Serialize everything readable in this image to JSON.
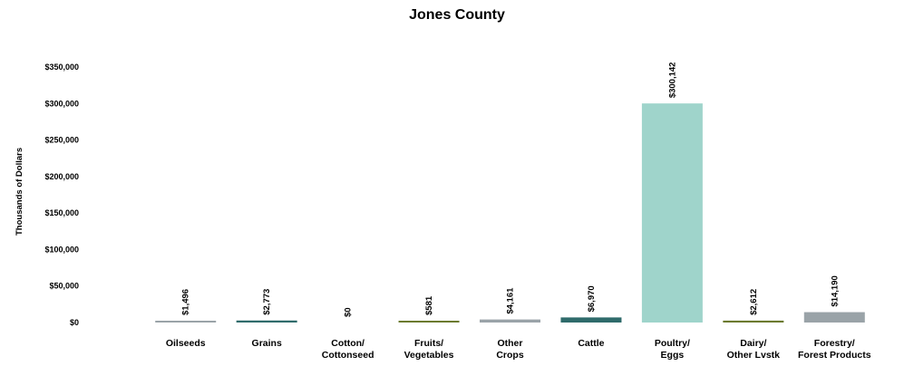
{
  "chart_data": {
    "type": "bar",
    "title": "Jones County",
    "xlabel": "",
    "ylabel": "Thousands of Dollars",
    "ylim": [
      0,
      350000
    ],
    "yticks": [
      "$0",
      "$50,000",
      "$100,000",
      "$150,000",
      "$200,000",
      "$250,000",
      "$300,000",
      "$350,000"
    ],
    "categories": [
      [
        "Oilseeds"
      ],
      [
        "Grains"
      ],
      [
        "Cotton/",
        "Cottonseed"
      ],
      [
        "Fruits/",
        "Vegetables"
      ],
      [
        "Other",
        "Crops"
      ],
      [
        "Cattle"
      ],
      [
        "Poultry/",
        "Eggs"
      ],
      [
        "Dairy/",
        "Other Lvstk"
      ],
      [
        "Forestry/",
        "Forest Products"
      ]
    ],
    "values": [
      1496,
      2773,
      0,
      581,
      4161,
      6970,
      300142,
      2612,
      14190
    ],
    "value_labels": [
      "$1,496",
      "$2,773",
      "$0",
      "$581",
      "$4,161",
      "$6,970",
      "$300,142",
      "$2,612",
      "$14,190"
    ],
    "colors": [
      "#9aa3a8",
      "#2f6b6b",
      "#9aa3a8",
      "#6b7a2f",
      "#9aa3a8",
      "#2f6b6b",
      "#9fd4cb",
      "#6b7a2f",
      "#9aa3a8"
    ],
    "grid": false,
    "legend": "none"
  }
}
